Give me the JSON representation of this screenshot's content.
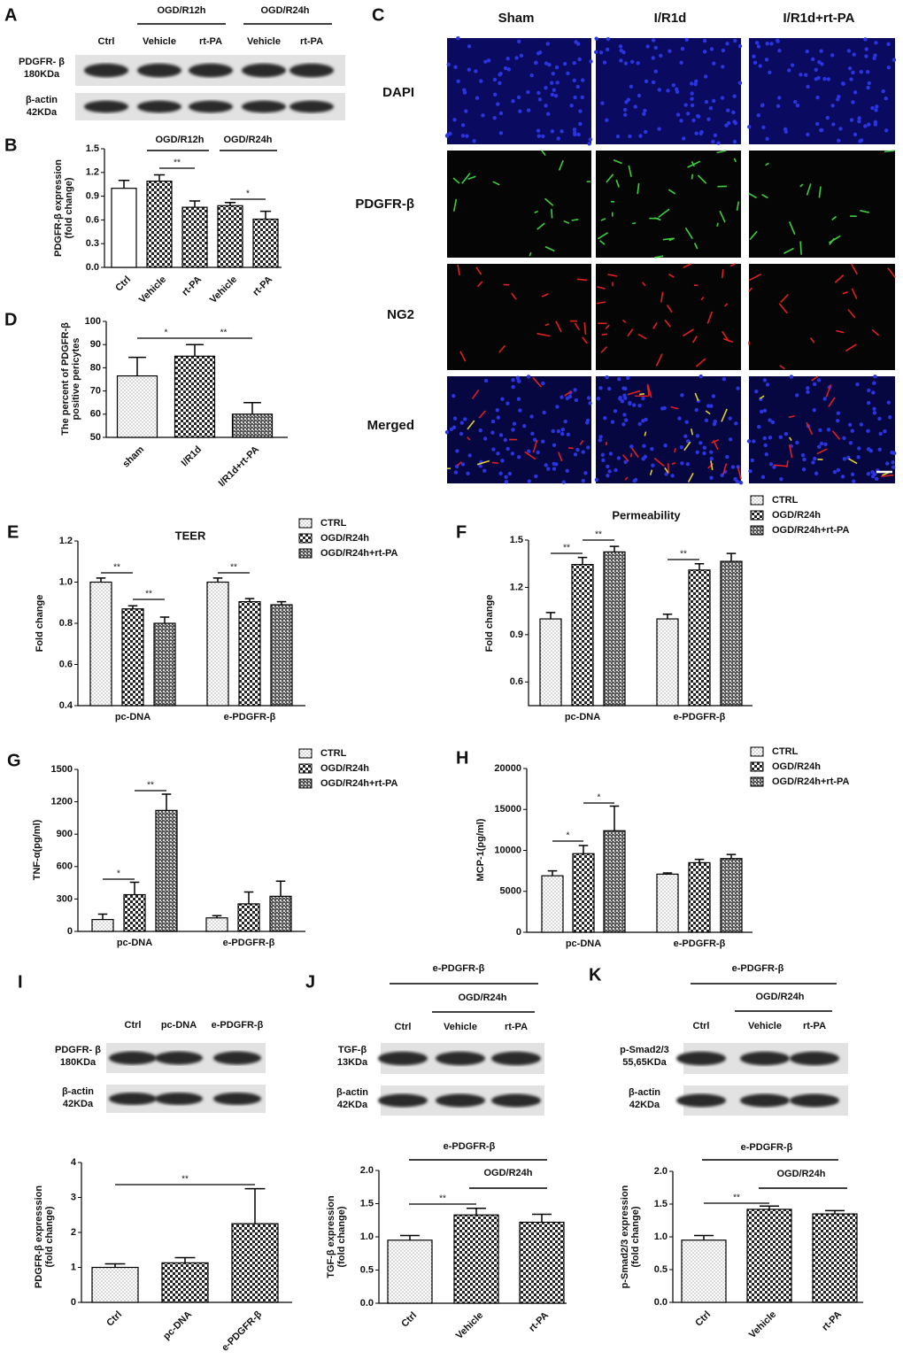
{
  "blots": [
    {
      "panel": "A",
      "groups": [
        "OGD/R12h",
        "OGD/R24h"
      ],
      "lanes": [
        "Ctrl",
        "Vehicle",
        "rt-PA",
        "Vehicle",
        "rt-PA"
      ],
      "rows": [
        [
          "PDGFR- β",
          "180KDa"
        ],
        [
          "β-actin",
          "42KDa"
        ]
      ]
    },
    {
      "panel": "I",
      "lanes": [
        "Ctrl",
        "pc-DNA",
        "e-PDGFR-β"
      ],
      "rows": [
        [
          "PDGFR- β",
          "180KDa"
        ],
        [
          "β-actin",
          "42KDa"
        ]
      ]
    },
    {
      "panel": "J",
      "groups": [
        "e-PDGFR-β",
        "OGD/R24h"
      ],
      "lanes": [
        "Ctrl",
        "Vehicle",
        "rt-PA"
      ],
      "rows": [
        [
          "TGF-β",
          "13KDa"
        ],
        [
          "β-actin",
          "42KDa"
        ]
      ]
    },
    {
      "panel": "K",
      "groups": [
        "e-PDGFR-β",
        "OGD/R24h"
      ],
      "lanes": [
        "Ctrl",
        "Vehicle",
        "rt-PA"
      ],
      "rows": [
        [
          "p-Smad2/3",
          "55,65KDa"
        ],
        [
          "β-actin",
          "42KDa"
        ]
      ]
    }
  ],
  "microscopy": {
    "panel": "C",
    "columns": [
      "Sham",
      "I/R1d",
      "I/R1d+rt-PA"
    ],
    "rows": [
      "DAPI",
      "PDGFR-β",
      "NG2",
      "Merged"
    ]
  },
  "chart_data": [
    {
      "type": "bar",
      "panel": "B",
      "ylabel": [
        "PDGFR-β expression",
        "(fold change)"
      ],
      "groups": [
        "OGD/R12h",
        "OGD/R24h"
      ],
      "categories": [
        "Ctrl",
        "Vehicle",
        "rt-PA",
        "Vehicle",
        "rt-PA"
      ],
      "values": [
        1.0,
        1.09,
        0.76,
        0.78,
        0.61
      ],
      "errors": [
        0.1,
        0.08,
        0.08,
        0.04,
        0.1
      ],
      "patterns": [
        "white",
        "check",
        "check",
        "check",
        "check"
      ],
      "significance": [
        "**",
        "*"
      ],
      "ylim": [
        0,
        1.5
      ],
      "yticks": [
        {
          "value": 0,
          "label": "0.0"
        },
        0.3,
        0.6,
        0.9,
        1.2,
        1.5
      ]
    },
    {
      "type": "bar",
      "panel": "D",
      "ylabel": [
        "The percent of PDGFR-β",
        "positive pericytes"
      ],
      "categories": [
        "sham",
        "I/R1d",
        "I/R1d+rt-PA"
      ],
      "values": [
        76.5,
        85,
        60
      ],
      "errors": [
        8,
        5,
        5
      ],
      "patterns": [
        "dots",
        "check",
        "weave"
      ],
      "significance": [
        "*",
        "**"
      ],
      "ylim": [
        50,
        100
      ],
      "yticks": [
        50,
        60,
        70,
        80,
        90,
        100
      ]
    },
    {
      "type": "grouped-bar",
      "panel": "E",
      "title": "TEER",
      "ylabel": [
        "Fold change"
      ],
      "categories": [
        "pc-DNA",
        "e-PDGFR-β"
      ],
      "series": [
        {
          "name": "CTRL",
          "pattern": "dots",
          "values": [
            1.0,
            1.0
          ],
          "errors": [
            0.02,
            0.02
          ]
        },
        {
          "name": "OGD/R24h",
          "pattern": "check",
          "values": [
            0.87,
            0.905
          ],
          "errors": [
            0.015,
            0.015
          ]
        },
        {
          "name": "OGD/R24h+rt-PA",
          "pattern": "weave",
          "values": [
            0.8,
            0.89
          ],
          "errors": [
            0.03,
            0.015
          ]
        }
      ],
      "significance": [
        "**",
        "**",
        "**"
      ],
      "ylim": [
        0.4,
        1.2
      ],
      "yticks": [
        0.4,
        0.6,
        0.8,
        {
          "value": 1.0,
          "label": "1.0"
        },
        1.2
      ]
    },
    {
      "type": "grouped-bar",
      "panel": "F",
      "title": "Permeability",
      "ylabel": [
        "Fold change"
      ],
      "categories": [
        "pc-DNA",
        "e-PDGFR-β"
      ],
      "series": [
        {
          "name": "CTRL",
          "pattern": "dots",
          "values": [
            1.0,
            1.0
          ],
          "errors": [
            0.04,
            0.03
          ]
        },
        {
          "name": "OGD/R24h",
          "pattern": "check",
          "values": [
            1.345,
            1.31
          ],
          "errors": [
            0.045,
            0.04
          ]
        },
        {
          "name": "OGD/R24h+rt-PA",
          "pattern": "weave",
          "values": [
            1.425,
            1.365
          ],
          "errors": [
            0.035,
            0.05
          ]
        }
      ],
      "significance": [
        "**",
        "**",
        "**"
      ],
      "ylim": [
        0.45,
        1.5
      ],
      "yticks": [
        0.6,
        0.9,
        1.2,
        1.5
      ]
    },
    {
      "type": "grouped-bar",
      "panel": "G",
      "ylabel": [
        "TNF-α(pg/ml)"
      ],
      "categories": [
        "pc-DNA",
        "e-PDGFR-β"
      ],
      "series": [
        {
          "name": "CTRL",
          "pattern": "dots",
          "values": [
            110,
            125
          ],
          "errors": [
            50,
            20
          ]
        },
        {
          "name": "OGD/R24h",
          "pattern": "check",
          "values": [
            340,
            255
          ],
          "errors": [
            115,
            110
          ]
        },
        {
          "name": "OGD/R24h+rt-PA",
          "pattern": "weave",
          "values": [
            1120,
            325
          ],
          "errors": [
            150,
            140
          ]
        }
      ],
      "significance": [
        "*",
        "**"
      ],
      "ylim": [
        0,
        1500
      ],
      "yticks": [
        0,
        300,
        600,
        900,
        1200,
        1500
      ]
    },
    {
      "type": "grouped-bar",
      "panel": "H",
      "ylabel": [
        "MCP-1(pg/ml)"
      ],
      "categories": [
        "pc-DNA",
        "e-PDGFR-β"
      ],
      "series": [
        {
          "name": "CTRL",
          "pattern": "dots",
          "values": [
            6900,
            7100
          ],
          "errors": [
            600,
            150
          ]
        },
        {
          "name": "OGD/R24h",
          "pattern": "check",
          "values": [
            9600,
            8500
          ],
          "errors": [
            1000,
            400
          ]
        },
        {
          "name": "OGD/R24h+rt-PA",
          "pattern": "weave",
          "values": [
            12400,
            9000
          ],
          "errors": [
            3000,
            500
          ]
        }
      ],
      "significance": [
        "*",
        "*"
      ],
      "ylim": [
        0,
        20000
      ],
      "yticks": [
        0,
        5000,
        10000,
        15000,
        20000
      ]
    },
    {
      "type": "bar",
      "ylabel": [
        "PDGFR-β expresssion",
        "(fold change)"
      ],
      "categories": [
        "Ctrl",
        "pc-DNA",
        "e-PDGFR-β"
      ],
      "values": [
        1.0,
        1.13,
        2.25
      ],
      "errors": [
        0.1,
        0.15,
        1.0
      ],
      "patterns": [
        "dots",
        "check",
        "check"
      ],
      "significance": [
        "**"
      ],
      "ylim": [
        0,
        4
      ],
      "yticks": [
        0,
        1,
        2,
        3,
        4
      ]
    },
    {
      "type": "bar",
      "ylabel": [
        "TGF-β expression",
        "(fold change)"
      ],
      "groups": [
        "e-PDGFR-β",
        "OGD/R24h"
      ],
      "categories": [
        "Ctrl",
        "Vehicle",
        "rt-PA"
      ],
      "values": [
        0.95,
        1.33,
        1.22
      ],
      "errors": [
        0.07,
        0.1,
        0.12
      ],
      "patterns": [
        "dots",
        "check",
        "check"
      ],
      "significance": [
        "**"
      ],
      "ylim": [
        0,
        2
      ],
      "yticks": [
        {
          "value": 0,
          "label": "0.0"
        },
        0.5,
        {
          "value": 1,
          "label": "1.0"
        },
        1.5,
        {
          "value": 2,
          "label": "2.0"
        }
      ]
    },
    {
      "type": "bar",
      "ylabel": [
        "p-Smad2/3 expression",
        "(fold change)"
      ],
      "groups": [
        "e-PDGFR-β",
        "OGD/R24h"
      ],
      "categories": [
        "Ctrl",
        "Vehicle",
        "rt-PA"
      ],
      "values": [
        0.95,
        1.42,
        1.35
      ],
      "errors": [
        0.07,
        0.05,
        0.05
      ],
      "patterns": [
        "dots",
        "check",
        "check"
      ],
      "significance": [
        "**"
      ],
      "ylim": [
        0,
        2
      ],
      "yticks": [
        {
          "value": 0,
          "label": "0.0"
        },
        0.5,
        {
          "value": 1,
          "label": "1.0"
        },
        1.5,
        {
          "value": 2,
          "label": "2.0"
        }
      ]
    }
  ]
}
